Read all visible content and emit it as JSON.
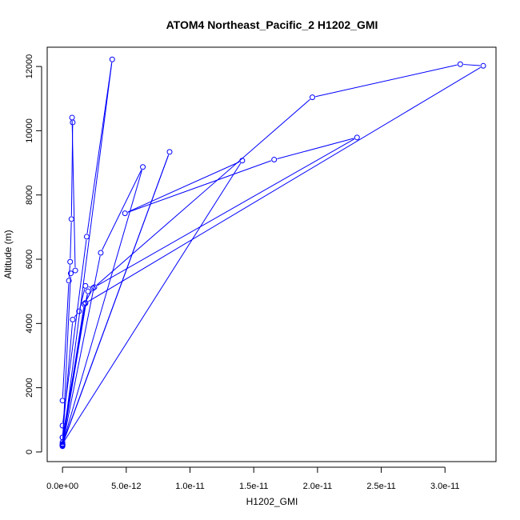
{
  "chart_data": {
    "type": "line",
    "title": "ATOM4 Northeast_Pacific_2 H1202_GMI",
    "xlabel": "H1202_GMI",
    "ylabel": "Altitude (m)",
    "xlim": [
      -1.2e-12,
      3.4e-11
    ],
    "ylim": [
      -300,
      12600
    ],
    "x_ticks": [
      {
        "value": 0,
        "label": "0.0e+00"
      },
      {
        "value": 5e-12,
        "label": "5.0e-12"
      },
      {
        "value": 1e-11,
        "label": "1.0e-11"
      },
      {
        "value": 1.5e-11,
        "label": "1.5e-11"
      },
      {
        "value": 2e-11,
        "label": "2.0e-11"
      },
      {
        "value": 2.5e-11,
        "label": "2.5e-11"
      },
      {
        "value": 3e-11,
        "label": "3.0e-11"
      }
    ],
    "y_ticks": [
      {
        "value": 0,
        "label": "0"
      },
      {
        "value": 2000,
        "label": "2000"
      },
      {
        "value": 4000,
        "label": "4000"
      },
      {
        "value": 6000,
        "label": "6000"
      },
      {
        "value": 8000,
        "label": "8000"
      },
      {
        "value": 10000,
        "label": "10000"
      },
      {
        "value": 12000,
        "label": "12000"
      }
    ],
    "color": "#0000ff",
    "marker": "open-circle",
    "grid": false,
    "series": [
      {
        "points": [
          {
            "x": 0,
            "y": 200
          },
          {
            "x": 3e-12,
            "y": 6200
          },
          {
            "x": 6.3e-12,
            "y": 8870
          },
          {
            "x": 0,
            "y": 230
          },
          {
            "x": 8.4e-12,
            "y": 9340
          },
          {
            "x": 0,
            "y": 250
          },
          {
            "x": 1.41e-11,
            "y": 9070
          },
          {
            "x": 4.9e-12,
            "y": 7430
          },
          {
            "x": 1.66e-11,
            "y": 9100
          },
          {
            "x": 2.31e-11,
            "y": 9790
          },
          {
            "x": 2.5e-12,
            "y": 5130
          },
          {
            "x": 1.96e-11,
            "y": 11040
          },
          {
            "x": 3.12e-11,
            "y": 12070
          },
          {
            "x": 3.3e-11,
            "y": 12020
          },
          {
            "x": 1.8e-12,
            "y": 4630
          },
          {
            "x": 0,
            "y": 300
          }
        ]
      },
      {
        "points": [
          {
            "x": 0,
            "y": 200
          },
          {
            "x": 1.7e-12,
            "y": 4600
          },
          {
            "x": 2.4e-12,
            "y": 5100
          },
          {
            "x": 1.8e-12,
            "y": 5170
          },
          {
            "x": 1.3e-12,
            "y": 4380
          },
          {
            "x": 8e-13,
            "y": 4120
          },
          {
            "x": 0,
            "y": 450
          }
        ]
      },
      {
        "points": [
          {
            "x": 0,
            "y": 820
          },
          {
            "x": 1.9e-12,
            "y": 6700
          },
          {
            "x": 3.9e-12,
            "y": 12220
          },
          {
            "x": 0,
            "y": 180
          }
        ]
      },
      {
        "points": [
          {
            "x": 0,
            "y": 1600
          },
          {
            "x": 5e-13,
            "y": 5330
          },
          {
            "x": 6e-13,
            "y": 5920
          },
          {
            "x": 7e-13,
            "y": 7250
          },
          {
            "x": 8e-13,
            "y": 10260
          },
          {
            "x": 7.5e-13,
            "y": 10410
          },
          {
            "x": 1e-12,
            "y": 5650
          },
          {
            "x": 6.5e-13,
            "y": 5560
          },
          {
            "x": 0,
            "y": 220
          }
        ]
      },
      {
        "points": [
          {
            "x": 0,
            "y": 230
          },
          {
            "x": 2e-12,
            "y": 5000
          },
          {
            "x": 1.8e-12,
            "y": 4640
          },
          {
            "x": 0,
            "y": 450
          }
        ]
      }
    ]
  }
}
